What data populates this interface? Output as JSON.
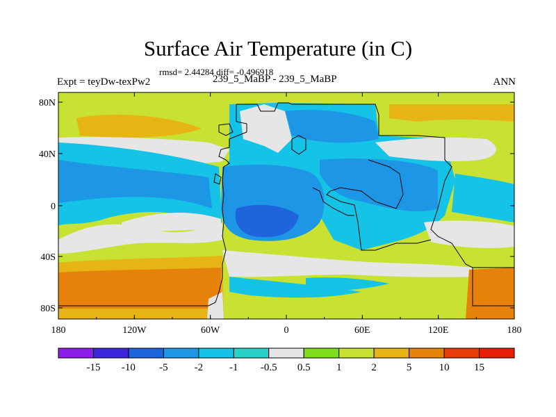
{
  "header": {
    "title": "Surface Air Temperature (in C)",
    "stats": "rmsd= 2.44284 diff= -0.496918",
    "experiment": "Expt = teyDw-texPw2",
    "center_label": "239_5_MaBP - 239_5_MaBP",
    "season": "ANN"
  },
  "map": {
    "lon_ticks": [
      "180",
      "120W",
      "60W",
      "0",
      "60E",
      "120E",
      "180"
    ],
    "lat_ticks": [
      "80N",
      "40N",
      "0",
      "40S",
      "80S"
    ]
  },
  "colorbar": {
    "labels": [
      "-15",
      "-10",
      "-5",
      "-2",
      "-1",
      "-0.5",
      "0.5",
      "1",
      "2",
      "5",
      "10",
      "15"
    ],
    "colors": [
      "#8a1ee6",
      "#3c28dc",
      "#1e64dc",
      "#1e96e6",
      "#14c3e6",
      "#28d2c8",
      "#e6e6e6",
      "#82dc1e",
      "#c8e132",
      "#e6b414",
      "#e6820a",
      "#e63c0a",
      "#e61e0a"
    ]
  },
  "palette": {
    "near_zero": "#e6e6e6",
    "light_warm": "#c8e132",
    "mid_warm": "#e6b414",
    "warm": "#e6820a",
    "light_cool": "#14c3e6",
    "cool": "#1e96e6",
    "cold": "#1e64dc"
  }
}
